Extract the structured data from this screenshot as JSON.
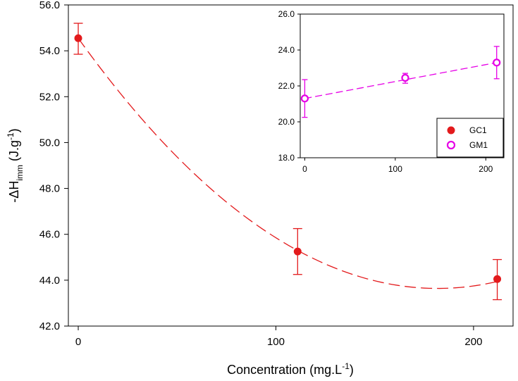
{
  "chart_data": [
    {
      "type": "scatter",
      "role": "main",
      "title": "",
      "xlabel": "Concentration (mg.L",
      "xlabel_sup": "-1",
      "xlabel_end": ")",
      "ylabel_prefix": "-ΔH",
      "ylabel_sub": "imm",
      "ylabel_mid": " (J.g",
      "ylabel_sup": "-1",
      "ylabel_end": ")",
      "xlim": [
        -5,
        220
      ],
      "ylim": [
        42.0,
        56.0
      ],
      "xticks": [
        0,
        100,
        200
      ],
      "xtick_labels": [
        "0",
        "100",
        "200"
      ],
      "yticks": [
        42,
        44,
        46,
        48,
        50,
        52,
        54,
        56
      ],
      "ytick_labels": [
        "42.0",
        "44.0",
        "46.0",
        "48.0",
        "50.0",
        "52.0",
        "54.0",
        "56.0"
      ],
      "series": [
        {
          "name": "GC1",
          "color": "#e31a1c",
          "marker": "filled-circle",
          "points": [
            {
              "x": 0,
              "y": 54.55,
              "err_low": 53.85,
              "err_high": 55.2
            },
            {
              "x": 111,
              "y": 45.25,
              "err_low": 44.25,
              "err_high": 46.25
            },
            {
              "x": 212,
              "y": 44.05,
              "err_low": 43.15,
              "err_high": 44.9
            }
          ],
          "fit": {
            "type": "quadratic",
            "coefficients": [
              54.55,
              -0.12,
              0.00033
            ],
            "x_range": [
              0,
              212
            ]
          }
        }
      ]
    },
    {
      "type": "scatter",
      "role": "inset",
      "xlim": [
        -5,
        220
      ],
      "ylim": [
        18.0,
        26.0
      ],
      "xticks": [
        0,
        100,
        200
      ],
      "xtick_labels": [
        "0",
        "100",
        "200"
      ],
      "yticks": [
        18,
        20,
        22,
        24,
        26
      ],
      "ytick_labels": [
        "18.0",
        "20.0",
        "22.0",
        "24.0",
        "26.0"
      ],
      "series": [
        {
          "name": "GM1",
          "color": "#e600e6",
          "marker": "open-circle",
          "points": [
            {
              "x": 0,
              "y": 21.3,
              "err_low": 20.25,
              "err_high": 22.35
            },
            {
              "x": 111,
              "y": 22.45,
              "err_low": 22.15,
              "err_high": 22.7
            },
            {
              "x": 212,
              "y": 23.3,
              "err_low": 22.4,
              "err_high": 24.2
            }
          ],
          "fit": {
            "type": "linear",
            "coefficients": [
              21.3,
              0.00943
            ],
            "x_range": [
              0,
              212
            ]
          }
        }
      ],
      "legend": [
        {
          "label": "GC1",
          "color": "#e31a1c",
          "marker": "filled-circle"
        },
        {
          "label": "GM1",
          "color": "#e600e6",
          "marker": "open-circle"
        }
      ]
    }
  ]
}
